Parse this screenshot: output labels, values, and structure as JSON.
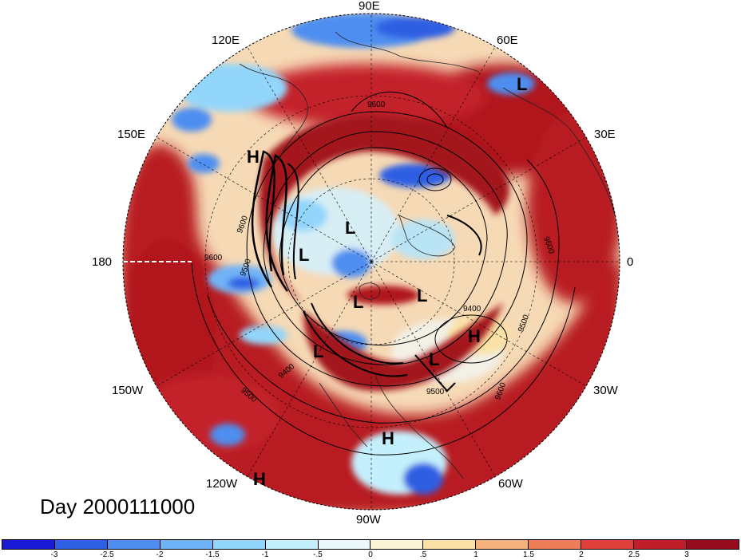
{
  "map": {
    "day_label": "Day 2000111000",
    "longitude_labels": {
      "lon_90e": "90E",
      "lon_60e": "60E",
      "lon_120e": "120E",
      "lon_30e": "30E",
      "lon_150e": "150E",
      "lon_0": "0",
      "lon_180": "180",
      "lon_30w": "30W",
      "lon_150w": "150W",
      "lon_60w": "60W",
      "lon_120w": "120W",
      "lon_90w": "90W"
    },
    "pressure_markers": {
      "h1": "H",
      "h2": "H",
      "h3": "H",
      "h4": "H",
      "l1": "L",
      "l2": "L",
      "l3": "L",
      "l4": "L",
      "l5": "L",
      "l6": "L",
      "l7": "L"
    },
    "contour_labels": {
      "c1": "9600",
      "c2": "9600",
      "c3": "9500",
      "c4": "9600",
      "c5": "9600",
      "c6": "9400",
      "c7": "9500",
      "c8": "9400",
      "c9": "9500",
      "c10": "9600",
      "c11": "9500"
    }
  },
  "colorbar": {
    "colors": [
      "#1a1ad6",
      "#2f5fe3",
      "#4d8ef0",
      "#6fb3f7",
      "#93d6fb",
      "#c4f0fd",
      "#eaf8fb",
      "#fbf4d8",
      "#fbe1a6",
      "#f6b27c",
      "#ee7d5a",
      "#e0413c",
      "#c01f2a",
      "#960c1e"
    ],
    "tick_labels": [
      "-3",
      "-2.5",
      "-2",
      "-1.5",
      "-1",
      "-.5",
      "0",
      ".5",
      "1",
      "1.5",
      "2",
      "2.5",
      "3"
    ]
  }
}
